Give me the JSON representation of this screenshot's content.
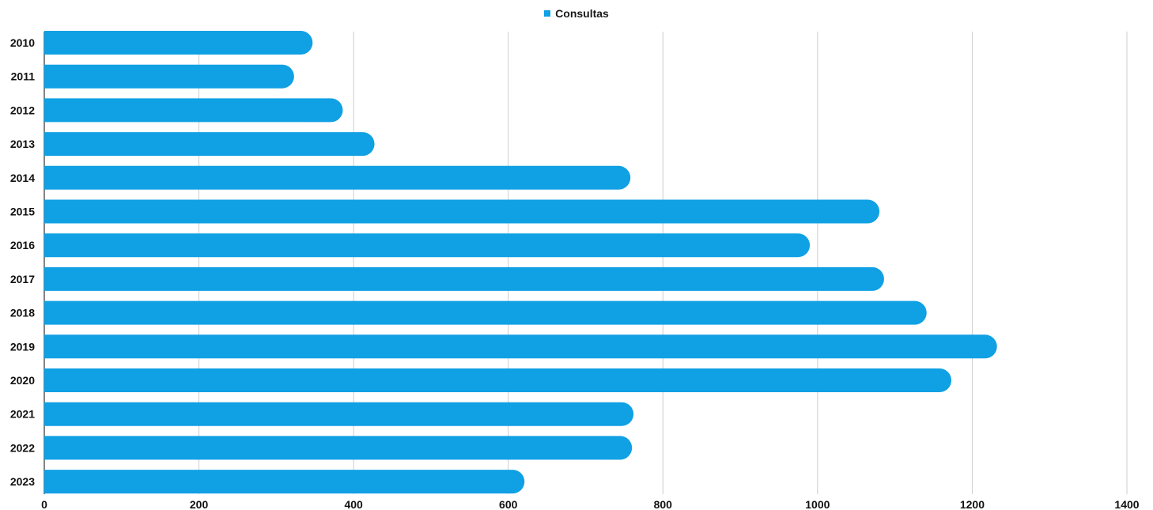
{
  "legend": {
    "label": "Consultas"
  },
  "colors": {
    "bar": "#10A0E4",
    "grid": "#cccccc",
    "axis": "#333333"
  },
  "chart_data": {
    "type": "bar",
    "orientation": "horizontal",
    "categories": [
      "2010",
      "2011",
      "2012",
      "2013",
      "2014",
      "2015",
      "2016",
      "2017",
      "2018",
      "2019",
      "2020",
      "2021",
      "2022",
      "2023"
    ],
    "series": [
      {
        "name": "Consultas",
        "values": [
          347,
          323,
          386,
          427,
          758,
          1080,
          990,
          1086,
          1141,
          1232,
          1173,
          762,
          760,
          621
        ]
      }
    ],
    "xlim": [
      0,
      1400
    ],
    "xticks": [
      0,
      200,
      400,
      600,
      800,
      1000,
      1200,
      1400
    ],
    "grid": true,
    "legend_position": "top-center"
  }
}
